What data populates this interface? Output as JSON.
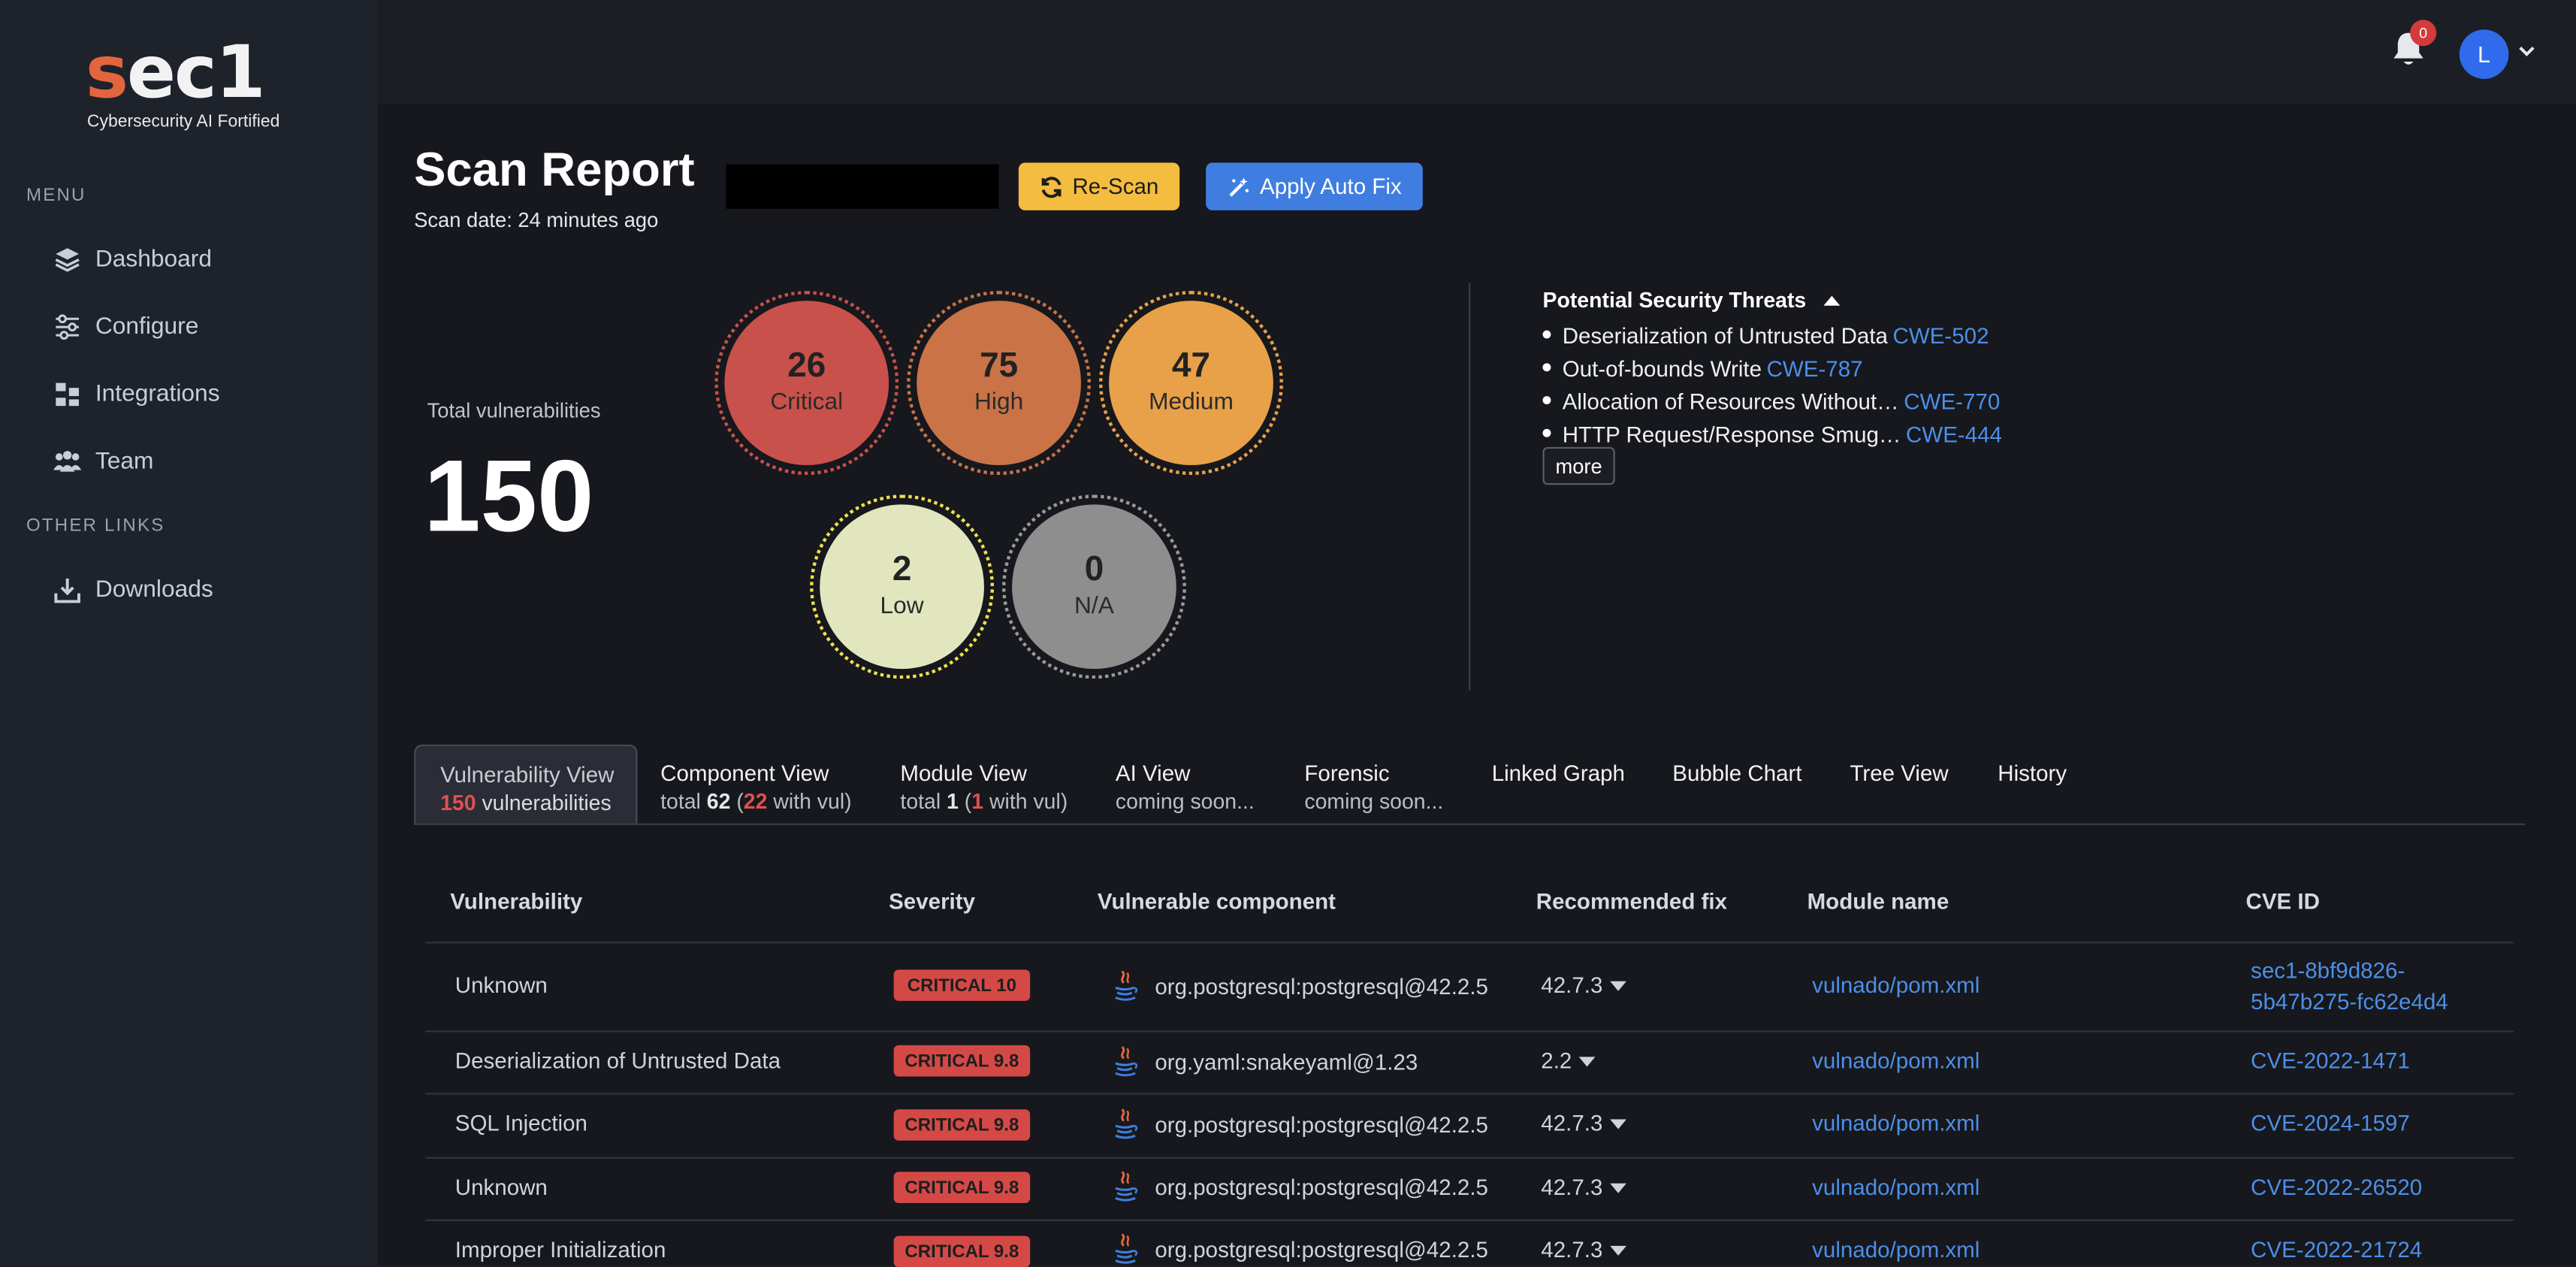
{
  "brand": {
    "logo_letter": "s",
    "logo_rest": "ec1",
    "tagline": "Cybersecurity AI Fortified",
    "accent": "#e2653d"
  },
  "sidebar": {
    "menu_label": "MENU",
    "items": [
      {
        "label": "Dashboard",
        "icon": "layers-icon"
      },
      {
        "label": "Configure",
        "icon": "sliders-icon"
      },
      {
        "label": "Integrations",
        "icon": "integrations-icon"
      },
      {
        "label": "Team",
        "icon": "team-icon"
      }
    ],
    "other_label": "OTHER LINKS",
    "other_items": [
      {
        "label": "Downloads",
        "icon": "download-icon"
      }
    ]
  },
  "topbar": {
    "notification_count": "0",
    "avatar_initial": "L"
  },
  "report": {
    "title": "Scan Report",
    "scan_date": "Scan date: 24 minutes ago",
    "rescan_label": "Re-Scan",
    "autofix_label": "Apply Auto Fix"
  },
  "summary": {
    "total_label": "Total vulnerabilities",
    "total": "150",
    "severities": [
      {
        "count": "26",
        "label": "Critical",
        "color": "#c9514b"
      },
      {
        "count": "75",
        "label": "High",
        "color": "#c97347"
      },
      {
        "count": "47",
        "label": "Medium",
        "color": "#e8a148"
      },
      {
        "count": "2",
        "label": "Low",
        "color": "#e2e6bf"
      },
      {
        "count": "0",
        "label": "N/A",
        "color": "#8e8e8e"
      }
    ]
  },
  "threats": {
    "title": "Potential Security Threats",
    "items": [
      {
        "name": "Deserialization of Untrusted Data",
        "cwe": "CWE-502"
      },
      {
        "name": "Out-of-bounds Write",
        "cwe": "CWE-787"
      },
      {
        "name": "Allocation of Resources Without…",
        "cwe": "CWE-770"
      },
      {
        "name": "HTTP Request/Response Smug…",
        "cwe": "CWE-444"
      }
    ],
    "more_label": "more"
  },
  "tabs": [
    {
      "title": "Vulnerability View",
      "sub_count": "150",
      "sub_text": " vulnerabilities"
    },
    {
      "title": "Component View",
      "sub_pre": "total ",
      "sub_total": "62",
      "sub_mid": " (",
      "sub_vul": "22",
      "sub_post": " with vul)"
    },
    {
      "title": "Module View",
      "sub_pre": "total ",
      "sub_total": "1",
      "sub_mid": " (",
      "sub_vul": "1",
      "sub_post": " with vul)"
    },
    {
      "title": "AI View",
      "sub": "coming soon..."
    },
    {
      "title": "Forensic",
      "sub": "coming soon..."
    },
    {
      "title": "Linked Graph"
    },
    {
      "title": "Bubble Chart"
    },
    {
      "title": "Tree View"
    },
    {
      "title": "History"
    }
  ],
  "table": {
    "columns": [
      "Vulnerability",
      "Severity",
      "Vulnerable component",
      "Recommended fix",
      "Module name",
      "CVE ID"
    ],
    "rows": [
      {
        "vulnerability": "Unknown",
        "severity": "CRITICAL 10",
        "component": "org.postgresql:postgresql@42.2.5",
        "fix": "42.7.3",
        "module": "vulnado/pom.xml",
        "cve": "sec1-8bf9d826-5b47b275-fc62e4d4"
      },
      {
        "vulnerability": "Deserialization of Untrusted Data",
        "severity": "CRITICAL 9.8",
        "component": "org.yaml:snakeyaml@1.23",
        "fix": "2.2",
        "module": "vulnado/pom.xml",
        "cve": "CVE-2022-1471"
      },
      {
        "vulnerability": "SQL Injection",
        "severity": "CRITICAL 9.8",
        "component": "org.postgresql:postgresql@42.2.5",
        "fix": "42.7.3",
        "module": "vulnado/pom.xml",
        "cve": "CVE-2024-1597"
      },
      {
        "vulnerability": "Unknown",
        "severity": "CRITICAL 9.8",
        "component": "org.postgresql:postgresql@42.2.5",
        "fix": "42.7.3",
        "module": "vulnado/pom.xml",
        "cve": "CVE-2022-26520"
      },
      {
        "vulnerability": "Improper Initialization",
        "severity": "CRITICAL 9.8",
        "component": "org.postgresql:postgresql@42.2.5",
        "fix": "42.7.3",
        "module": "vulnado/pom.xml",
        "cve": "CVE-2022-21724"
      }
    ]
  }
}
